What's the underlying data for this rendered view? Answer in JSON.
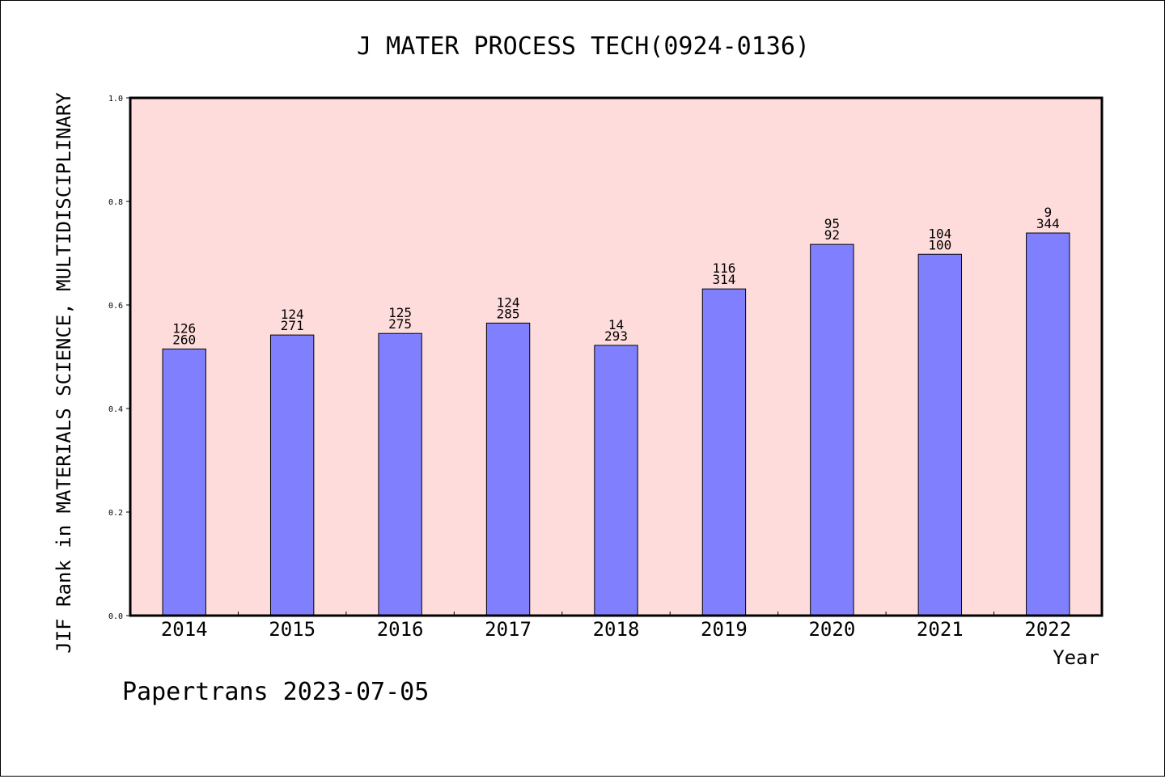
{
  "chart_data": {
    "type": "bar",
    "title": "J MATER PROCESS TECH(0924-0136)",
    "xlabel": "Year",
    "ylabel": "JIF Rank in MATERIALS SCIENCE, MULTIDISCIPLINARY",
    "categories": [
      "2014",
      "2015",
      "2016",
      "2017",
      "2018",
      "2019",
      "2020",
      "2021",
      "2022"
    ],
    "values": [
      0.515,
      0.542,
      0.545,
      0.565,
      0.522,
      0.631,
      0.717,
      0.698,
      0.739
    ],
    "labels_top": [
      "126",
      "124",
      "125",
      "124",
      "14",
      "116",
      "95",
      "104",
      "9"
    ],
    "labels_bottom": [
      "260",
      "271",
      "275",
      "285",
      "293",
      "314",
      "92",
      "100",
      "344"
    ],
    "ylim": [
      0,
      1.0
    ],
    "yticks": [
      "0.0",
      "0.2",
      "0.4",
      "0.6",
      "0.8",
      "1.0"
    ],
    "plot_background": "#ffdcdc",
    "bar_color": "#8080ff",
    "grid": false
  },
  "footer": "Papertrans 2023-07-05"
}
